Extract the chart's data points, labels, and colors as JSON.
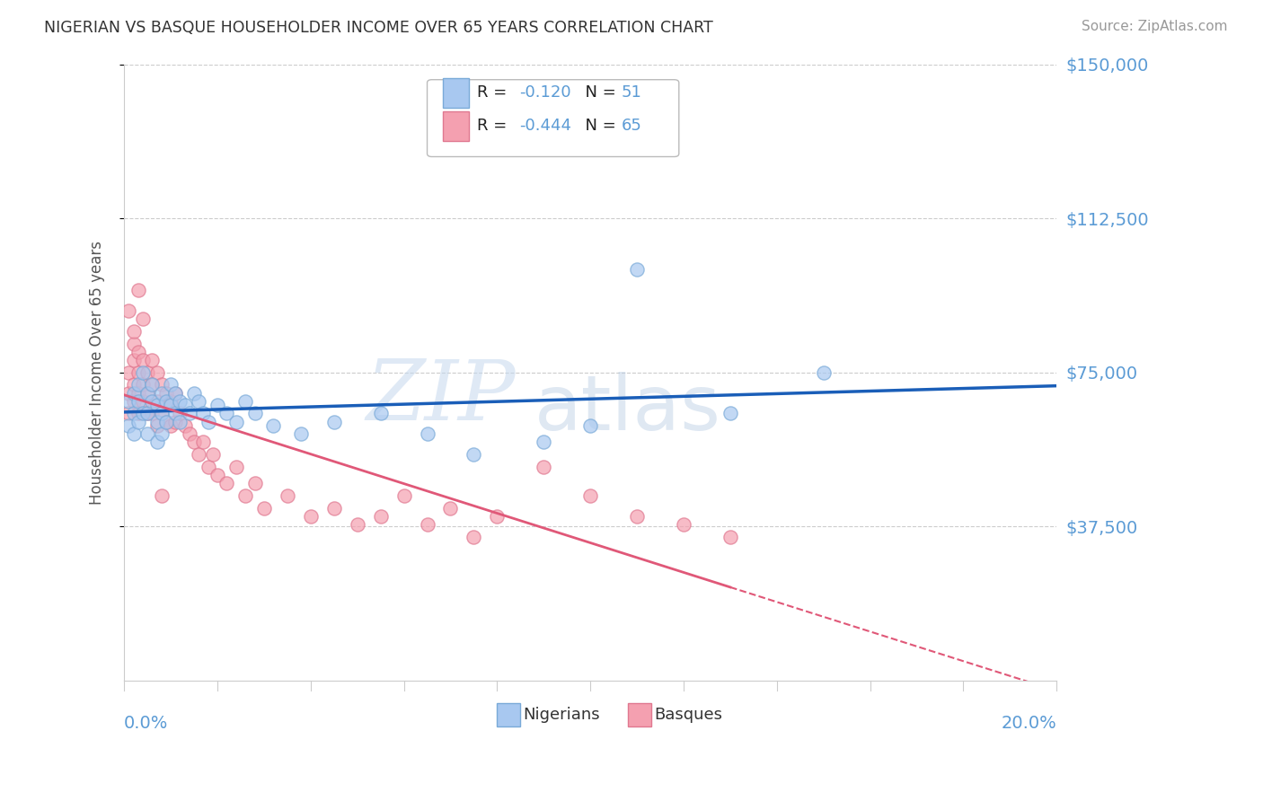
{
  "title": "NIGERIAN VS BASQUE HOUSEHOLDER INCOME OVER 65 YEARS CORRELATION CHART",
  "source": "Source: ZipAtlas.com",
  "ylabel": "Householder Income Over 65 years",
  "xmin": 0.0,
  "xmax": 0.2,
  "ymin": 0,
  "ymax": 150000,
  "ytick_vals": [
    37500,
    75000,
    112500,
    150000
  ],
  "ytick_labels": [
    "$37,500",
    "$75,000",
    "$112,500",
    "$150,000"
  ],
  "watermark_zip": "ZIP",
  "watermark_atlas": "atlas",
  "nigerian_color": "#a8c8f0",
  "nigerian_edge": "#7aaad8",
  "basque_color": "#f4a0b0",
  "basque_edge": "#e07890",
  "nigerian_line_color": "#1a5eb8",
  "basque_line_color": "#e05878",
  "axis_color": "#5b9bd5",
  "grid_color": "#cccccc",
  "nigerian_x": [
    0.001,
    0.001,
    0.002,
    0.002,
    0.002,
    0.003,
    0.003,
    0.003,
    0.004,
    0.004,
    0.005,
    0.005,
    0.005,
    0.006,
    0.006,
    0.007,
    0.007,
    0.007,
    0.008,
    0.008,
    0.008,
    0.009,
    0.009,
    0.01,
    0.01,
    0.011,
    0.011,
    0.012,
    0.012,
    0.013,
    0.014,
    0.015,
    0.016,
    0.017,
    0.018,
    0.02,
    0.022,
    0.024,
    0.026,
    0.028,
    0.032,
    0.038,
    0.045,
    0.055,
    0.065,
    0.075,
    0.09,
    0.1,
    0.11,
    0.13,
    0.15
  ],
  "nigerian_y": [
    68000,
    62000,
    70000,
    65000,
    60000,
    72000,
    68000,
    63000,
    75000,
    65000,
    70000,
    65000,
    60000,
    68000,
    72000,
    67000,
    63000,
    58000,
    70000,
    65000,
    60000,
    68000,
    63000,
    72000,
    67000,
    70000,
    65000,
    68000,
    63000,
    67000,
    65000,
    70000,
    68000,
    65000,
    63000,
    67000,
    65000,
    63000,
    68000,
    65000,
    62000,
    60000,
    63000,
    65000,
    60000,
    55000,
    58000,
    62000,
    100000,
    65000,
    75000
  ],
  "basque_x": [
    0.001,
    0.001,
    0.001,
    0.002,
    0.002,
    0.002,
    0.002,
    0.003,
    0.003,
    0.003,
    0.003,
    0.004,
    0.004,
    0.004,
    0.005,
    0.005,
    0.005,
    0.006,
    0.006,
    0.006,
    0.007,
    0.007,
    0.007,
    0.008,
    0.008,
    0.009,
    0.009,
    0.01,
    0.01,
    0.011,
    0.011,
    0.012,
    0.013,
    0.014,
    0.015,
    0.016,
    0.017,
    0.018,
    0.019,
    0.02,
    0.022,
    0.024,
    0.026,
    0.028,
    0.03,
    0.035,
    0.04,
    0.045,
    0.05,
    0.055,
    0.06,
    0.065,
    0.07,
    0.075,
    0.08,
    0.09,
    0.1,
    0.11,
    0.12,
    0.13,
    0.001,
    0.002,
    0.003,
    0.004,
    0.008
  ],
  "basque_y": [
    75000,
    70000,
    65000,
    82000,
    78000,
    72000,
    68000,
    80000,
    75000,
    70000,
    65000,
    78000,
    72000,
    68000,
    75000,
    70000,
    65000,
    78000,
    72000,
    65000,
    75000,
    68000,
    62000,
    72000,
    65000,
    70000,
    63000,
    68000,
    62000,
    70000,
    63000,
    65000,
    62000,
    60000,
    58000,
    55000,
    58000,
    52000,
    55000,
    50000,
    48000,
    52000,
    45000,
    48000,
    42000,
    45000,
    40000,
    42000,
    38000,
    40000,
    45000,
    38000,
    42000,
    35000,
    40000,
    52000,
    45000,
    40000,
    38000,
    35000,
    90000,
    85000,
    95000,
    88000,
    45000
  ]
}
